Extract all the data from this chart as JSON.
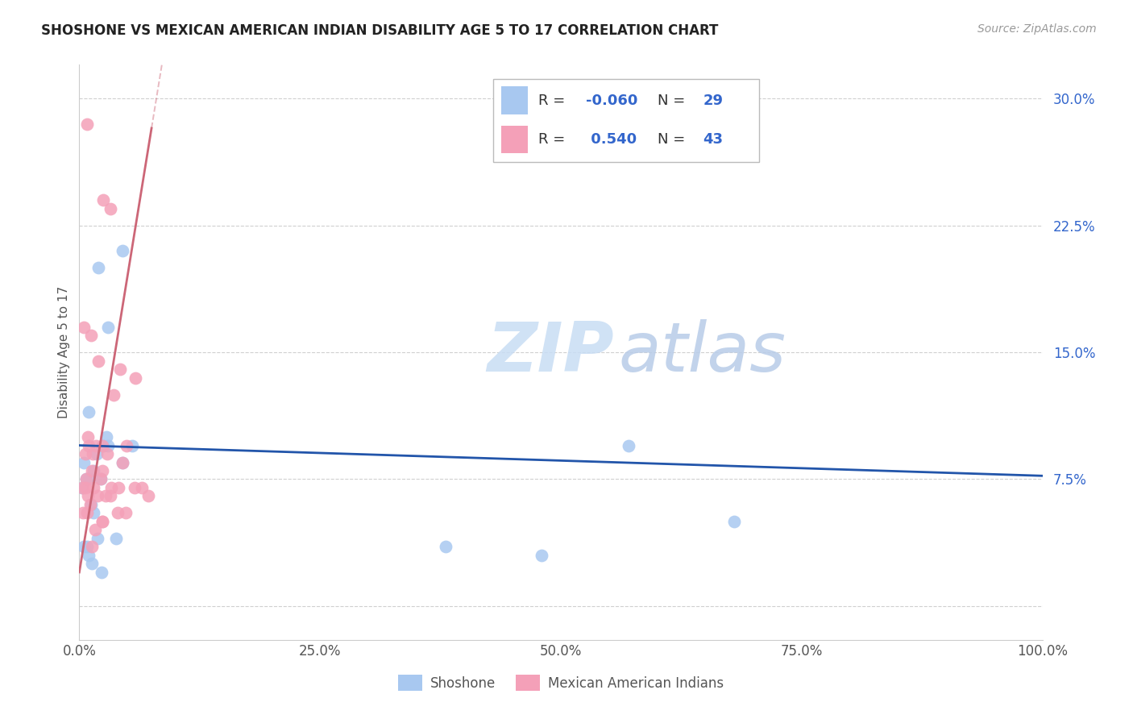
{
  "title": "SHOSHONE VS MEXICAN AMERICAN INDIAN DISABILITY AGE 5 TO 17 CORRELATION CHART",
  "source": "Source: ZipAtlas.com",
  "ylabel": "Disability Age 5 to 17",
  "xlim": [
    0,
    100
  ],
  "ylim": [
    -2,
    32
  ],
  "yticks": [
    0,
    7.5,
    15.0,
    22.5,
    30.0
  ],
  "xticks": [
    0,
    25,
    50,
    75,
    100
  ],
  "xtick_labels": [
    "0.0%",
    "25.0%",
    "50.0%",
    "75.0%",
    "100.0%"
  ],
  "ytick_labels": [
    "",
    "7.5%",
    "15.0%",
    "22.5%",
    "30.0%"
  ],
  "shoshone_R": "-0.060",
  "shoshone_N": "29",
  "mexican_R": " 0.540",
  "mexican_N": "43",
  "shoshone_color": "#a8c8f0",
  "mexican_color": "#f4a0b8",
  "shoshone_line_color": "#2255aa",
  "mexican_line_color": "#cc6677",
  "legend_text_color": "#3366cc",
  "watermark_color": "#ddeeff",
  "shoshone_x": [
    1.0,
    2.0,
    3.0,
    4.5,
    0.5,
    1.5,
    2.5,
    3.0,
    1.0,
    1.8,
    5.5,
    0.3,
    0.7,
    1.2,
    2.2,
    2.8,
    3.8,
    1.5,
    0.8,
    1.9,
    4.5,
    0.5,
    1.0,
    2.3,
    1.3,
    57,
    68,
    38,
    48
  ],
  "shoshone_y": [
    11.5,
    20.0,
    16.5,
    21.0,
    8.5,
    8.0,
    9.5,
    9.5,
    7.5,
    9.0,
    9.5,
    7.0,
    7.5,
    6.0,
    7.5,
    10.0,
    4.0,
    5.5,
    3.5,
    4.0,
    8.5,
    3.5,
    3.0,
    2.0,
    2.5,
    9.5,
    5.0,
    3.5,
    3.0
  ],
  "mexican_x": [
    0.8,
    2.5,
    3.2,
    0.5,
    1.2,
    2.0,
    4.2,
    5.8,
    0.9,
    1.7,
    3.6,
    0.6,
    1.0,
    2.9,
    2.4,
    4.5,
    1.4,
    0.7,
    2.2,
    0.3,
    2.7,
    3.3,
    4.9,
    0.6,
    1.3,
    2.4,
    4.1,
    1.5,
    0.9,
    1.9,
    5.7,
    0.4,
    1.1,
    2.4,
    3.2,
    6.5,
    7.2,
    0.8,
    1.6,
    4.0,
    1.3,
    2.4,
    4.8
  ],
  "mexican_y": [
    28.5,
    24.0,
    23.5,
    16.5,
    16.0,
    14.5,
    14.0,
    13.5,
    10.0,
    9.5,
    12.5,
    9.0,
    9.5,
    9.0,
    8.0,
    8.5,
    9.0,
    7.5,
    7.5,
    7.0,
    6.5,
    7.0,
    9.5,
    7.0,
    8.0,
    9.5,
    7.0,
    7.0,
    6.5,
    6.5,
    7.0,
    5.5,
    6.0,
    5.0,
    6.5,
    7.0,
    6.5,
    5.5,
    4.5,
    5.5,
    3.5,
    5.0,
    5.5
  ],
  "mex_solid_x0": 0,
  "mex_solid_x1": 7.5,
  "mex_intercept": 2.0,
  "mex_slope": 3.5,
  "shosh_intercept": 9.5,
  "shosh_slope": -0.018
}
